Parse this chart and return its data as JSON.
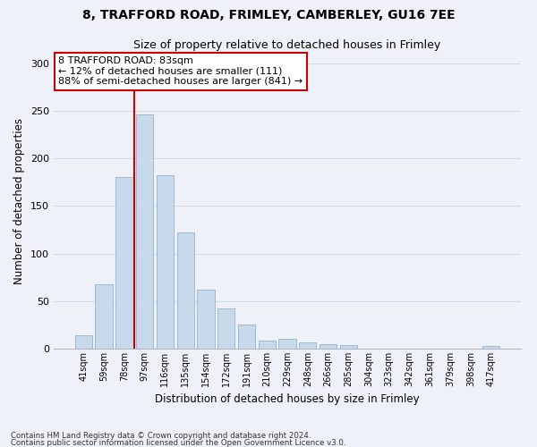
{
  "title_line1": "8, TRAFFORD ROAD, FRIMLEY, CAMBERLEY, GU16 7EE",
  "title_line2": "Size of property relative to detached houses in Frimley",
  "xlabel": "Distribution of detached houses by size in Frimley",
  "ylabel": "Number of detached properties",
  "categories": [
    "41sqm",
    "59sqm",
    "78sqm",
    "97sqm",
    "116sqm",
    "135sqm",
    "154sqm",
    "172sqm",
    "191sqm",
    "210sqm",
    "229sqm",
    "248sqm",
    "266sqm",
    "285sqm",
    "304sqm",
    "323sqm",
    "342sqm",
    "361sqm",
    "379sqm",
    "398sqm",
    "417sqm"
  ],
  "values": [
    14,
    68,
    180,
    246,
    182,
    122,
    62,
    42,
    25,
    8,
    10,
    7,
    5,
    4,
    0,
    0,
    0,
    0,
    0,
    0,
    3
  ],
  "bar_color": "#c8d9eb",
  "bar_edge_color": "#a0b8d0",
  "annotation_line1": "8 TRAFFORD ROAD: 83sqm",
  "annotation_line2": "← 12% of detached houses are smaller (111)",
  "annotation_line3": "88% of semi-detached houses are larger (841) →",
  "annotation_box_color": "#ffffff",
  "annotation_border_color": "#cc0000",
  "vline_color": "#cc0000",
  "vline_bar_index": 2,
  "footnote1": "Contains HM Land Registry data © Crown copyright and database right 2024.",
  "footnote2": "Contains public sector information licensed under the Open Government Licence v3.0.",
  "ylim": [
    0,
    310
  ],
  "yticks": [
    0,
    50,
    100,
    150,
    200,
    250,
    300
  ],
  "grid_color": "#d0d8e8",
  "background_color": "#eef2f8"
}
